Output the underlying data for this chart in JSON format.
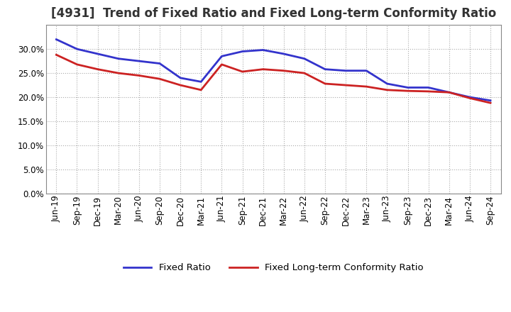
{
  "title": "[4931]  Trend of Fixed Ratio and Fixed Long-term Conformity Ratio",
  "x_labels": [
    "Jun-19",
    "Sep-19",
    "Dec-19",
    "Mar-20",
    "Jun-20",
    "Sep-20",
    "Dec-20",
    "Mar-21",
    "Jun-21",
    "Sep-21",
    "Dec-21",
    "Mar-22",
    "Jun-22",
    "Sep-22",
    "Dec-22",
    "Mar-23",
    "Jun-23",
    "Sep-23",
    "Dec-23",
    "Mar-24",
    "Jun-24",
    "Sep-24"
  ],
  "fixed_ratio": [
    0.32,
    0.3,
    0.29,
    0.28,
    0.275,
    0.27,
    0.24,
    0.232,
    0.285,
    0.295,
    0.298,
    0.29,
    0.28,
    0.258,
    0.255,
    0.255,
    0.228,
    0.22,
    0.22,
    0.21,
    0.2,
    0.193
  ],
  "fixed_lt_ratio": [
    0.288,
    0.268,
    0.258,
    0.25,
    0.245,
    0.238,
    0.225,
    0.215,
    0.268,
    0.253,
    0.258,
    0.255,
    0.25,
    0.228,
    0.225,
    0.222,
    0.215,
    0.213,
    0.212,
    0.21,
    0.198,
    0.188
  ],
  "fixed_ratio_color": "#3333cc",
  "fixed_lt_ratio_color": "#cc2222",
  "ylim": [
    0.0,
    0.35
  ],
  "yticks": [
    0.0,
    0.05,
    0.1,
    0.15,
    0.2,
    0.25,
    0.3
  ],
  "legend_fixed_ratio": "Fixed Ratio",
  "legend_fixed_lt_ratio": "Fixed Long-term Conformity Ratio",
  "background_color": "#ffffff",
  "plot_bg_color": "#ffffff",
  "grid_color": "#aaaaaa",
  "title_fontsize": 12,
  "tick_fontsize": 8.5,
  "legend_fontsize": 9.5
}
